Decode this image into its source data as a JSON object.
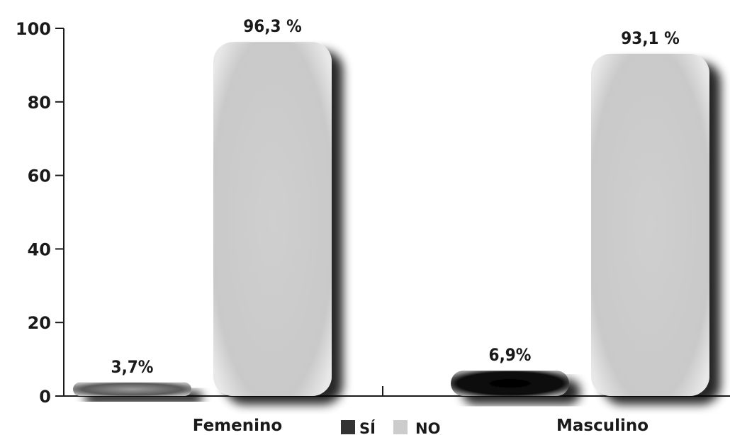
{
  "chart_data": {
    "type": "bar",
    "categories": [
      "Femenino",
      "Masculino"
    ],
    "series": [
      {
        "name": "SÍ",
        "values": [
          3.7,
          6.9
        ],
        "labels": [
          "3,7%",
          "6,9%"
        ],
        "color": "#3a3a3a"
      },
      {
        "name": "NO",
        "values": [
          96.3,
          93.1
        ],
        "labels": [
          "96,3 %",
          "93,1 %"
        ],
        "color": "#cccccc"
      }
    ],
    "yticks": [
      "0",
      "20",
      "40",
      "60",
      "80",
      "100"
    ],
    "ylim": [
      0,
      100
    ],
    "legend": {
      "placement": "bottom-center"
    },
    "grid": false
  }
}
